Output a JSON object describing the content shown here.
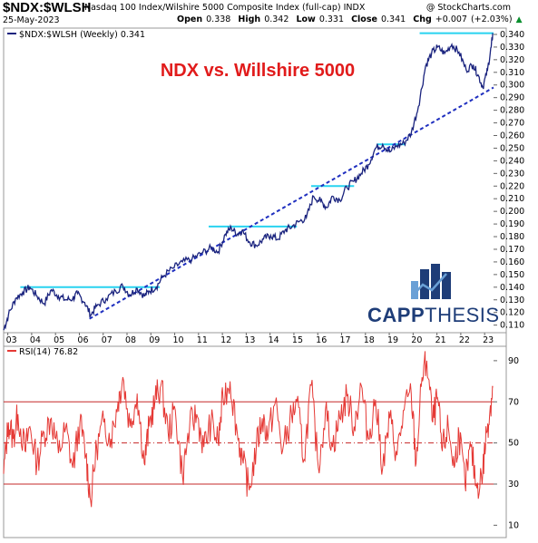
{
  "header": {
    "ticker": "$NDX:$WLSH",
    "description": "Nasdaq 100 Index/Wilshire 5000 Composite Index (full-cap)  INDX",
    "watermark": "@ StockCharts.com",
    "date": "25-May-2023",
    "open_label": "Open",
    "open": "0.338",
    "high_label": "High",
    "high": "0.342",
    "low_label": "Low",
    "low": "0.331",
    "close_label": "Close",
    "close": "0.341",
    "chg_label": "Chg",
    "chg": "+0.007 (+2.03%)",
    "chg_arrow": "▲"
  },
  "colors": {
    "price": "#1a237e",
    "resistance": "#29d3f0",
    "trendline": "#1f2fbf",
    "rsi": "#e53935",
    "rsi_bands": "#c62828",
    "title": "#e11b1b",
    "logo": "#1e3d78"
  },
  "logo": {
    "text_bold": "CAPP",
    "text_light": "THESIS"
  },
  "chart_data": [
    {
      "type": "line",
      "title": "NDX vs. Willshire 5000",
      "legend": "$NDX:$WLSH (Weekly) 0.341",
      "y_axis_side": "right",
      "ylim": [
        0.104,
        0.345
      ],
      "y_ticks": [
        "0.340",
        "0.330",
        "0.320",
        "0.310",
        "0.300",
        "0.290",
        "0.280",
        "0.270",
        "0.260",
        "0.250",
        "0.240",
        "0.230",
        "0.220",
        "0.210",
        "0.200",
        "0.190",
        "0.180",
        "0.170",
        "0.160",
        "0.150",
        "0.140",
        "0.130",
        "0.120",
        "0.110"
      ],
      "x_ticks": [
        "03",
        "04",
        "05",
        "06",
        "07",
        "08",
        "09",
        "10",
        "11",
        "12",
        "13",
        "14",
        "15",
        "16",
        "17",
        "18",
        "19",
        "20",
        "21",
        "22",
        "23"
      ],
      "x_range": [
        2002.9,
        2023.45
      ],
      "series": [
        {
          "values": [
            [
              2002.9,
              0.106
            ],
            [
              2003.1,
              0.118
            ],
            [
              2003.4,
              0.131
            ],
            [
              2003.7,
              0.136
            ],
            [
              2004.0,
              0.14
            ],
            [
              2004.3,
              0.133
            ],
            [
              2004.6,
              0.127
            ],
            [
              2004.9,
              0.138
            ],
            [
              2005.2,
              0.133
            ],
            [
              2005.5,
              0.13
            ],
            [
              2005.8,
              0.131
            ],
            [
              2006.0,
              0.135
            ],
            [
              2006.3,
              0.128
            ],
            [
              2006.55,
              0.118
            ],
            [
              2006.8,
              0.125
            ],
            [
              2007.2,
              0.131
            ],
            [
              2007.6,
              0.137
            ],
            [
              2007.9,
              0.141
            ],
            [
              2008.2,
              0.134
            ],
            [
              2008.5,
              0.139
            ],
            [
              2008.8,
              0.133
            ],
            [
              2009.0,
              0.137
            ],
            [
              2009.3,
              0.14
            ],
            [
              2009.6,
              0.149
            ],
            [
              2010.0,
              0.155
            ],
            [
              2010.4,
              0.16
            ],
            [
              2010.8,
              0.162
            ],
            [
              2011.2,
              0.167
            ],
            [
              2011.6,
              0.171
            ],
            [
              2011.9,
              0.168
            ],
            [
              2012.2,
              0.182
            ],
            [
              2012.45,
              0.187
            ],
            [
              2012.7,
              0.182
            ],
            [
              2012.9,
              0.185
            ],
            [
              2013.2,
              0.176
            ],
            [
              2013.5,
              0.173
            ],
            [
              2013.8,
              0.178
            ],
            [
              2014.1,
              0.181
            ],
            [
              2014.4,
              0.178
            ],
            [
              2014.7,
              0.185
            ],
            [
              2015.0,
              0.188
            ],
            [
              2015.3,
              0.192
            ],
            [
              2015.6,
              0.195
            ],
            [
              2015.9,
              0.212
            ],
            [
              2016.2,
              0.208
            ],
            [
              2016.45,
              0.203
            ],
            [
              2016.7,
              0.212
            ],
            [
              2017.0,
              0.209
            ],
            [
              2017.3,
              0.219
            ],
            [
              2017.6,
              0.224
            ],
            [
              2017.9,
              0.23
            ],
            [
              2018.2,
              0.237
            ],
            [
              2018.5,
              0.25
            ],
            [
              2018.8,
              0.253
            ],
            [
              2019.1,
              0.247
            ],
            [
              2019.4,
              0.252
            ],
            [
              2019.7,
              0.254
            ],
            [
              2020.0,
              0.262
            ],
            [
              2020.3,
              0.283
            ],
            [
              2020.6,
              0.315
            ],
            [
              2020.85,
              0.325
            ],
            [
              2021.1,
              0.33
            ],
            [
              2021.4,
              0.325
            ],
            [
              2021.7,
              0.332
            ],
            [
              2022.0,
              0.326
            ],
            [
              2022.3,
              0.312
            ],
            [
              2022.6,
              0.316
            ],
            [
              2022.8,
              0.308
            ],
            [
              2023.0,
              0.298
            ],
            [
              2023.2,
              0.312
            ],
            [
              2023.35,
              0.33
            ],
            [
              2023.42,
              0.341
            ]
          ]
        }
      ],
      "resistance_lines": [
        {
          "x": [
            2003.6,
            2009.45
          ],
          "y": 0.14
        },
        {
          "x": [
            2011.5,
            2015.2
          ],
          "y": 0.188
        },
        {
          "x": [
            2015.8,
            2017.6
          ],
          "y": 0.22
        },
        {
          "x": [
            2018.55,
            2019.75
          ],
          "y": 0.253
        },
        {
          "x": [
            2020.35,
            2023.45
          ],
          "y": 0.341
        }
      ],
      "trendline": {
        "x": [
          2006.5,
          2023.45
        ],
        "y": [
          0.115,
          0.298
        ]
      }
    },
    {
      "type": "line",
      "legend": "RSI(14) 76.82",
      "ylim": [
        4,
        97
      ],
      "y_ticks": [
        "90",
        "70",
        "50",
        "30",
        "10"
      ],
      "x_ticks": [
        "03",
        "04",
        "05",
        "06",
        "07",
        "08",
        "09",
        "10",
        "11",
        "12",
        "13",
        "14",
        "15",
        "16",
        "17",
        "18",
        "19",
        "20",
        "21",
        "22",
        "23"
      ],
      "x_range": [
        2002.9,
        2023.45
      ],
      "reference_lines": [
        70,
        50,
        30
      ],
      "series": [
        {
          "values": [
            [
              2002.9,
              35
            ],
            [
              2003.1,
              60
            ],
            [
              2003.3,
              52
            ],
            [
              2003.5,
              64
            ],
            [
              2003.8,
              46
            ],
            [
              2004.0,
              58
            ],
            [
              2004.3,
              40
            ],
            [
              2004.6,
              55
            ],
            [
              2004.9,
              62
            ],
            [
              2005.2,
              45
            ],
            [
              2005.5,
              57
            ],
            [
              2005.8,
              38
            ],
            [
              2006.1,
              60
            ],
            [
              2006.35,
              44
            ],
            [
              2006.55,
              22
            ],
            [
              2006.8,
              48
            ],
            [
              2007.1,
              60
            ],
            [
              2007.4,
              52
            ],
            [
              2007.7,
              70
            ],
            [
              2007.9,
              82
            ],
            [
              2008.2,
              58
            ],
            [
              2008.5,
              74
            ],
            [
              2008.8,
              40
            ],
            [
              2009.0,
              58
            ],
            [
              2009.25,
              71
            ],
            [
              2009.5,
              78
            ],
            [
              2009.8,
              55
            ],
            [
              2010.1,
              66
            ],
            [
              2010.4,
              34
            ],
            [
              2010.7,
              58
            ],
            [
              2011.0,
              64
            ],
            [
              2011.3,
              48
            ],
            [
              2011.6,
              60
            ],
            [
              2011.9,
              50
            ],
            [
              2012.1,
              72
            ],
            [
              2012.4,
              80
            ],
            [
              2012.7,
              55
            ],
            [
              2012.95,
              40
            ],
            [
              2013.2,
              27
            ],
            [
              2013.5,
              48
            ],
            [
              2013.75,
              62
            ],
            [
              2014.0,
              54
            ],
            [
              2014.3,
              70
            ],
            [
              2014.6,
              46
            ],
            [
              2014.9,
              60
            ],
            [
              2015.2,
              70
            ],
            [
              2015.5,
              42
            ],
            [
              2015.8,
              78
            ],
            [
              2016.1,
              38
            ],
            [
              2016.4,
              66
            ],
            [
              2016.7,
              48
            ],
            [
              2017.0,
              62
            ],
            [
              2017.3,
              73
            ],
            [
              2017.6,
              58
            ],
            [
              2017.9,
              78
            ],
            [
              2018.2,
              52
            ],
            [
              2018.5,
              71
            ],
            [
              2018.8,
              38
            ],
            [
              2019.1,
              62
            ],
            [
              2019.4,
              44
            ],
            [
              2019.7,
              66
            ],
            [
              2020.0,
              74
            ],
            [
              2020.2,
              40
            ],
            [
              2020.45,
              82
            ],
            [
              2020.65,
              90
            ],
            [
              2020.9,
              60
            ],
            [
              2021.1,
              72
            ],
            [
              2021.3,
              46
            ],
            [
              2021.55,
              58
            ],
            [
              2021.8,
              38
            ],
            [
              2022.0,
              55
            ],
            [
              2022.25,
              30
            ],
            [
              2022.5,
              48
            ],
            [
              2022.75,
              28
            ],
            [
              2023.0,
              36
            ],
            [
              2023.15,
              55
            ],
            [
              2023.3,
              66
            ],
            [
              2023.42,
              77
            ]
          ]
        }
      ]
    }
  ]
}
